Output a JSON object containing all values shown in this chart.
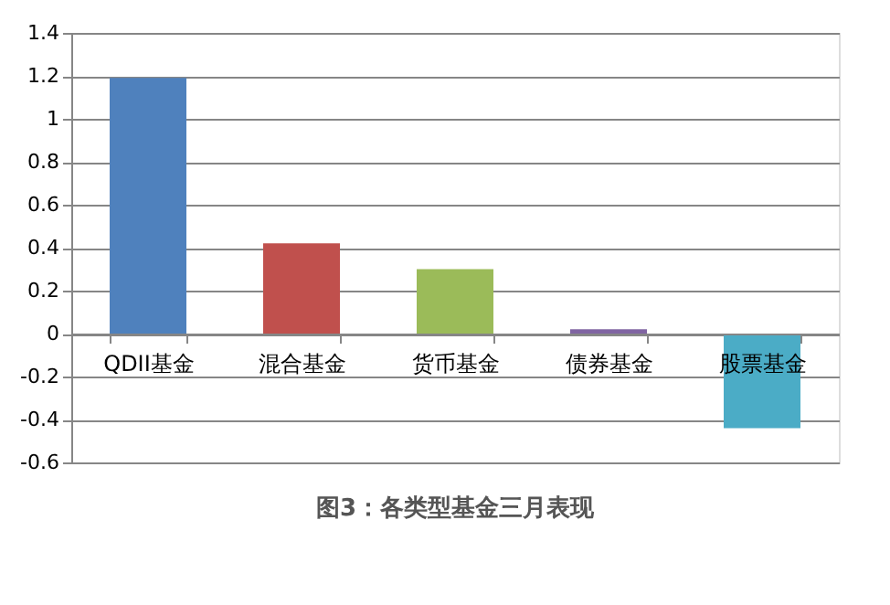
{
  "chart_data": {
    "type": "bar",
    "categories": [
      "QDII基金",
      "混合基金",
      "货币基金",
      "债券基金",
      "股票基金"
    ],
    "values": [
      1.19,
      0.42,
      0.3,
      0.02,
      -0.44
    ],
    "colors": [
      "#4f81bd",
      "#c0504d",
      "#9bbb59",
      "#8064a2",
      "#4bacc6"
    ],
    "ylim": [
      -0.6,
      1.4
    ],
    "yticks": [
      -0.6,
      -0.4,
      -0.2,
      0,
      0.2,
      0.4,
      0.6,
      0.8,
      1,
      1.2,
      1.4
    ],
    "grid": "y",
    "legend": false,
    "annotations": [
      "图3：各类型基金三月表现"
    ]
  }
}
